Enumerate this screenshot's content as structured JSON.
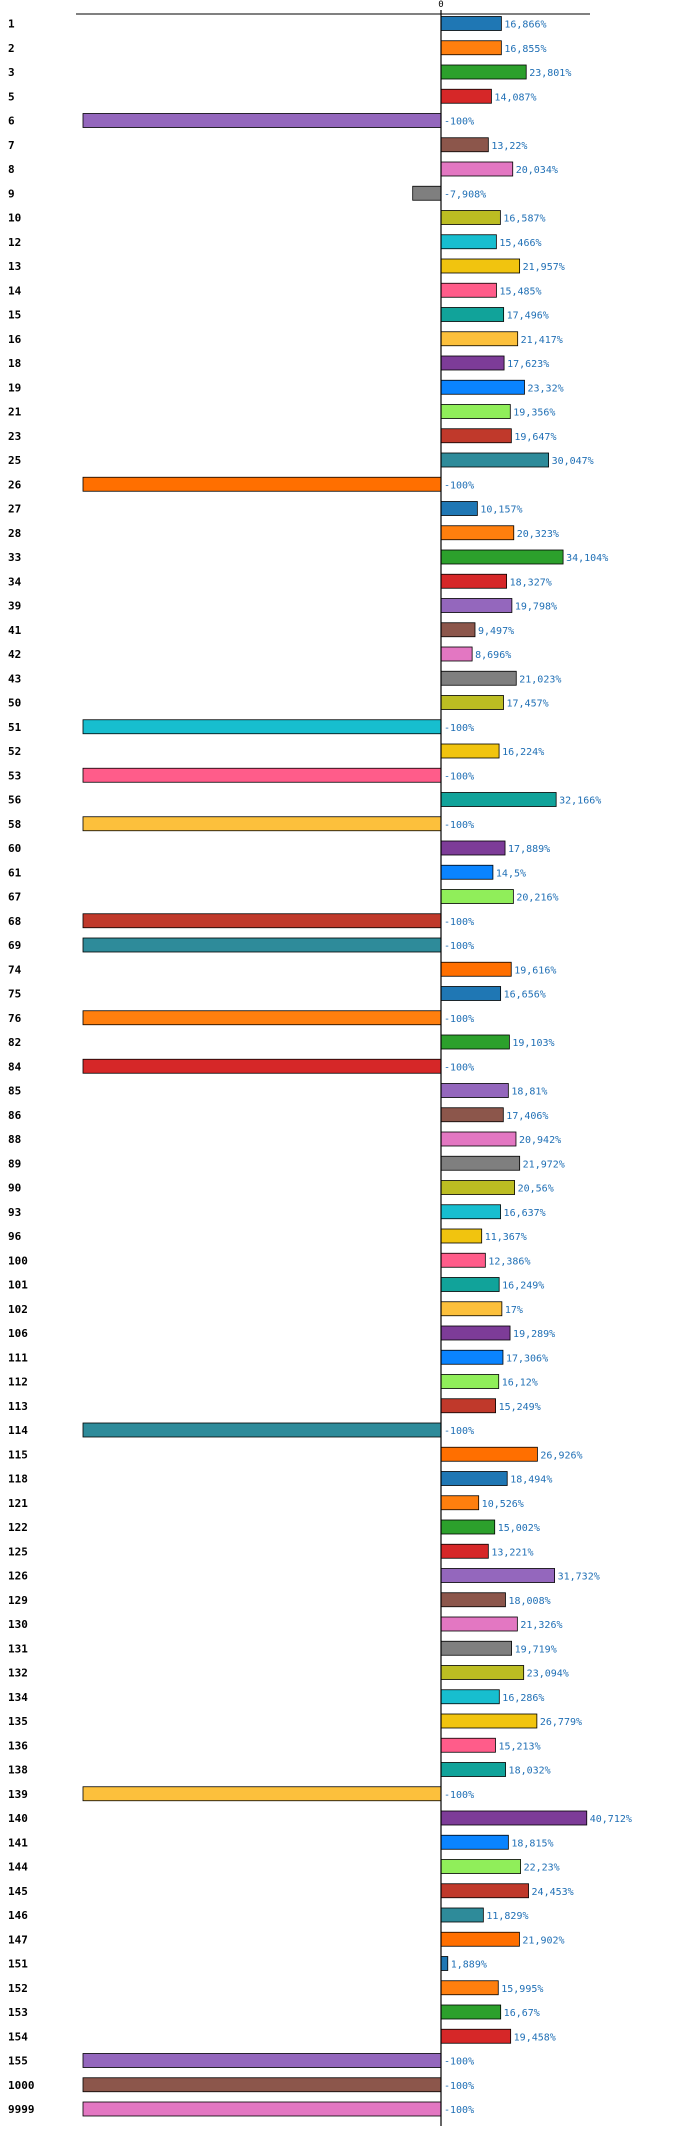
{
  "chart_data": {
    "type": "bar",
    "orientation": "horizontal",
    "zero_tick_label": "0",
    "xlim": [
      -100,
      45
    ],
    "highlighted_category": "145",
    "highlight_color": "#ff0000",
    "value_label_color": "#1f6fb5",
    "palette": [
      "#1f77b4",
      "#ff7f0e",
      "#2ca02c",
      "#d62728",
      "#9467bd",
      "#8c564b",
      "#e377c2",
      "#7f7f7f",
      "#bcbd22",
      "#17becf",
      "#f1c40f",
      "#ff5c8a",
      "#11a39a",
      "#fcc03c",
      "#7d3c98",
      "#0a84ff",
      "#90ee5a",
      "#c0392b",
      "#2e8b9a",
      "#ff6f00"
    ],
    "bars": [
      {
        "category": "1",
        "value": 16.866,
        "label": "16,866%"
      },
      {
        "category": "2",
        "value": 16.855,
        "label": "16,855%"
      },
      {
        "category": "3",
        "value": 23.801,
        "label": "23,801%"
      },
      {
        "category": "5",
        "value": 14.087,
        "label": "14,087%"
      },
      {
        "category": "6",
        "value": -100,
        "label": "-100%"
      },
      {
        "category": "7",
        "value": 13.22,
        "label": "13,22%"
      },
      {
        "category": "8",
        "value": 20.034,
        "label": "20,034%"
      },
      {
        "category": "9",
        "value": -7.908,
        "label": "-7,908%"
      },
      {
        "category": "10",
        "value": 16.587,
        "label": "16,587%"
      },
      {
        "category": "12",
        "value": 15.466,
        "label": "15,466%"
      },
      {
        "category": "13",
        "value": 21.957,
        "label": "21,957%"
      },
      {
        "category": "14",
        "value": 15.485,
        "label": "15,485%"
      },
      {
        "category": "15",
        "value": 17.496,
        "label": "17,496%"
      },
      {
        "category": "16",
        "value": 21.417,
        "label": "21,417%"
      },
      {
        "category": "18",
        "value": 17.623,
        "label": "17,623%"
      },
      {
        "category": "19",
        "value": 23.32,
        "label": "23,32%"
      },
      {
        "category": "21",
        "value": 19.356,
        "label": "19,356%"
      },
      {
        "category": "23",
        "value": 19.647,
        "label": "19,647%"
      },
      {
        "category": "25",
        "value": 30.047,
        "label": "30,047%"
      },
      {
        "category": "26",
        "value": -100,
        "label": "-100%"
      },
      {
        "category": "27",
        "value": 10.157,
        "label": "10,157%"
      },
      {
        "category": "28",
        "value": 20.323,
        "label": "20,323%"
      },
      {
        "category": "33",
        "value": 34.104,
        "label": "34,104%"
      },
      {
        "category": "34",
        "value": 18.327,
        "label": "18,327%"
      },
      {
        "category": "39",
        "value": 19.798,
        "label": "19,798%"
      },
      {
        "category": "41",
        "value": 9.497,
        "label": "9,497%"
      },
      {
        "category": "42",
        "value": 8.696,
        "label": "8,696%"
      },
      {
        "category": "43",
        "value": 21.023,
        "label": "21,023%"
      },
      {
        "category": "50",
        "value": 17.457,
        "label": "17,457%"
      },
      {
        "category": "51",
        "value": -100,
        "label": "-100%"
      },
      {
        "category": "52",
        "value": 16.224,
        "label": "16,224%"
      },
      {
        "category": "53",
        "value": -100,
        "label": "-100%"
      },
      {
        "category": "56",
        "value": 32.166,
        "label": "32,166%"
      },
      {
        "category": "58",
        "value": -100,
        "label": "-100%"
      },
      {
        "category": "60",
        "value": 17.889,
        "label": "17,889%"
      },
      {
        "category": "61",
        "value": 14.5,
        "label": "14,5%"
      },
      {
        "category": "67",
        "value": 20.216,
        "label": "20,216%"
      },
      {
        "category": "68",
        "value": -100,
        "label": "-100%"
      },
      {
        "category": "69",
        "value": -100,
        "label": "-100%"
      },
      {
        "category": "74",
        "value": 19.616,
        "label": "19,616%"
      },
      {
        "category": "75",
        "value": 16.656,
        "label": "16,656%"
      },
      {
        "category": "76",
        "value": -100,
        "label": "-100%"
      },
      {
        "category": "82",
        "value": 19.103,
        "label": "19,103%"
      },
      {
        "category": "84",
        "value": -100,
        "label": "-100%"
      },
      {
        "category": "85",
        "value": 18.81,
        "label": "18,81%"
      },
      {
        "category": "86",
        "value": 17.406,
        "label": "17,406%"
      },
      {
        "category": "88",
        "value": 20.942,
        "label": "20,942%"
      },
      {
        "category": "89",
        "value": 21.972,
        "label": "21,972%"
      },
      {
        "category": "90",
        "value": 20.56,
        "label": "20,56%"
      },
      {
        "category": "93",
        "value": 16.637,
        "label": "16,637%"
      },
      {
        "category": "96",
        "value": 11.367,
        "label": "11,367%"
      },
      {
        "category": "100",
        "value": 12.386,
        "label": "12,386%"
      },
      {
        "category": "101",
        "value": 16.249,
        "label": "16,249%"
      },
      {
        "category": "102",
        "value": 17,
        "label": "17%"
      },
      {
        "category": "106",
        "value": 19.289,
        "label": "19,289%"
      },
      {
        "category": "111",
        "value": 17.306,
        "label": "17,306%"
      },
      {
        "category": "112",
        "value": 16.12,
        "label": "16,12%"
      },
      {
        "category": "113",
        "value": 15.249,
        "label": "15,249%"
      },
      {
        "category": "114",
        "value": -100,
        "label": "-100%"
      },
      {
        "category": "115",
        "value": 26.926,
        "label": "26,926%"
      },
      {
        "category": "118",
        "value": 18.494,
        "label": "18,494%"
      },
      {
        "category": "121",
        "value": 10.526,
        "label": "10,526%"
      },
      {
        "category": "122",
        "value": 15.002,
        "label": "15,002%"
      },
      {
        "category": "125",
        "value": 13.221,
        "label": "13,221%"
      },
      {
        "category": "126",
        "value": 31.732,
        "label": "31,732%"
      },
      {
        "category": "129",
        "value": 18.008,
        "label": "18,008%"
      },
      {
        "category": "130",
        "value": 21.326,
        "label": "21,326%"
      },
      {
        "category": "131",
        "value": 19.719,
        "label": "19,719%"
      },
      {
        "category": "132",
        "value": 23.094,
        "label": "23,094%"
      },
      {
        "category": "134",
        "value": 16.286,
        "label": "16,286%"
      },
      {
        "category": "135",
        "value": 26.779,
        "label": "26,779%"
      },
      {
        "category": "136",
        "value": 15.213,
        "label": "15,213%"
      },
      {
        "category": "138",
        "value": 18.032,
        "label": "18,032%"
      },
      {
        "category": "139",
        "value": -100,
        "label": "-100%"
      },
      {
        "category": "140",
        "value": 40.712,
        "label": "40,712%"
      },
      {
        "category": "141",
        "value": 18.815,
        "label": "18,815%"
      },
      {
        "category": "144",
        "value": 22.23,
        "label": "22,23%"
      },
      {
        "category": "145",
        "value": 24.453,
        "label": "24,453%"
      },
      {
        "category": "146",
        "value": 11.829,
        "label": "11,829%"
      },
      {
        "category": "147",
        "value": 21.902,
        "label": "21,902%"
      },
      {
        "category": "151",
        "value": 1.889,
        "label": "1,889%"
      },
      {
        "category": "152",
        "value": 15.995,
        "label": "15,995%"
      },
      {
        "category": "153",
        "value": 16.67,
        "label": "16,67%"
      },
      {
        "category": "154",
        "value": 19.458,
        "label": "19,458%"
      },
      {
        "category": "155",
        "value": -100,
        "label": "-100%"
      },
      {
        "category": "1000",
        "value": -100,
        "label": "-100%"
      },
      {
        "category": "9999",
        "value": -100,
        "label": "-100%"
      }
    ]
  }
}
